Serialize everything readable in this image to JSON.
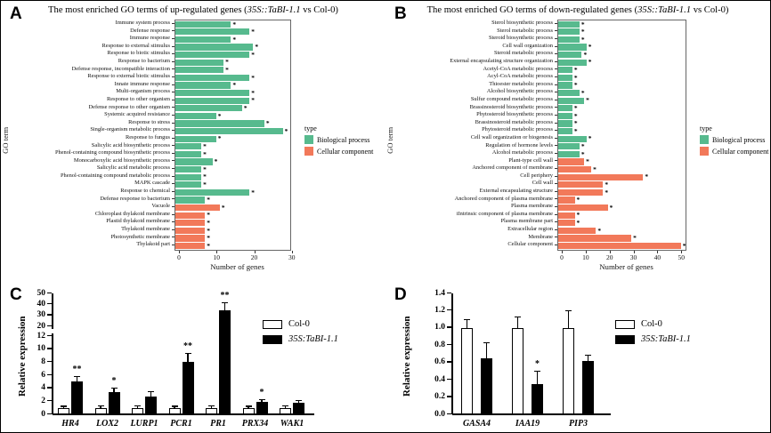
{
  "palette": {
    "biological_process": "#57ba8e",
    "cellular_component": "#f2795a"
  },
  "chart_data": [
    {
      "panel": "A",
      "type": "bar",
      "orientation": "horizontal",
      "title_prefix": "The most enriched GO terms of up-regulated genes (",
      "title_italic": "35S::TaBI-1.1",
      "title_suffix": " vs Col-0)",
      "ylabel": "GO term",
      "xlabel": "Number of genes",
      "xmax": 31,
      "xticks": [
        0,
        10,
        20,
        30
      ],
      "legend_title": "type",
      "legend": [
        {
          "label": "Biological process",
          "color": "#57ba8e"
        },
        {
          "label": "Cellular component",
          "color": "#f2795a"
        }
      ],
      "bars": [
        {
          "label": "Immune system process",
          "value": 15,
          "type": "bp",
          "sig": "*"
        },
        {
          "label": "Defense response",
          "value": 20,
          "type": "bp",
          "sig": "*"
        },
        {
          "label": "Immune response",
          "value": 15,
          "type": "bp",
          "sig": "*"
        },
        {
          "label": "Response to external stimulus",
          "value": 21,
          "type": "bp",
          "sig": "*"
        },
        {
          "label": "Response to biotic stimulus",
          "value": 20,
          "type": "bp",
          "sig": "*"
        },
        {
          "label": "Response to bacterium",
          "value": 13,
          "type": "bp",
          "sig": "*"
        },
        {
          "label": "Defense response, incompatible interaction",
          "value": 13,
          "type": "bp",
          "sig": "*"
        },
        {
          "label": "Response to external biotic stimulus",
          "value": 20,
          "type": "bp",
          "sig": "*"
        },
        {
          "label": "Innate immune response",
          "value": 15,
          "type": "bp",
          "sig": "*"
        },
        {
          "label": "Multi-organism process",
          "value": 20,
          "type": "bp",
          "sig": "*"
        },
        {
          "label": "Response to other organism",
          "value": 20,
          "type": "bp",
          "sig": "*"
        },
        {
          "label": "Defense response to other organism",
          "value": 18,
          "type": "bp",
          "sig": "*"
        },
        {
          "label": "Systemic acquired resistance",
          "value": 11,
          "type": "bp",
          "sig": "*"
        },
        {
          "label": "Response to stress",
          "value": 24,
          "type": "bp",
          "sig": "*"
        },
        {
          "label": "Single-organism metabolic process",
          "value": 29,
          "type": "bp",
          "sig": "*"
        },
        {
          "label": "Response to fungus",
          "value": 11,
          "type": "bp",
          "sig": "*"
        },
        {
          "label": "Salicylic acid biosynthetic process",
          "value": 7,
          "type": "bp",
          "sig": "*"
        },
        {
          "label": "Phenol-containing compound biosynthetic process",
          "value": 7,
          "type": "bp",
          "sig": "*"
        },
        {
          "label": "Monocarboxylic acid biosynthetic process",
          "value": 10,
          "type": "bp",
          "sig": "*"
        },
        {
          "label": "Salicylic acid metabolic process",
          "value": 7,
          "type": "bp",
          "sig": "*"
        },
        {
          "label": "Phenol-containing compound metabolic process",
          "value": 7,
          "type": "bp",
          "sig": "*"
        },
        {
          "label": "MAPK cascade",
          "value": 7,
          "type": "bp",
          "sig": "*"
        },
        {
          "label": "Response to chemical",
          "value": 20,
          "type": "bp",
          "sig": "*"
        },
        {
          "label": "Defense response to bacterium",
          "value": 8,
          "type": "bp",
          "sig": "*"
        },
        {
          "label": "Vacuole",
          "value": 12,
          "type": "cc",
          "sig": "*"
        },
        {
          "label": "Chloroplast thylakoid membrane",
          "value": 8,
          "type": "cc",
          "sig": "*"
        },
        {
          "label": "Plastid thylakoid membrane",
          "value": 8,
          "type": "cc",
          "sig": "*"
        },
        {
          "label": "Thylakoid membrane",
          "value": 8,
          "type": "cc",
          "sig": "*"
        },
        {
          "label": "Photosynthetic membrane",
          "value": 8,
          "type": "cc",
          "sig": "*"
        },
        {
          "label": "Thylakoid part",
          "value": 8,
          "type": "cc",
          "sig": "*"
        }
      ]
    },
    {
      "panel": "B",
      "type": "bar",
      "orientation": "horizontal",
      "title_prefix": "The most enriched GO terms of down-regulated genes (",
      "title_italic": "35S::TaBI-1.1",
      "title_suffix": " vs Col-0)",
      "ylabel": "GO term",
      "xlabel": "Number of genes",
      "xmax": 54,
      "xticks": [
        0,
        10,
        20,
        30,
        40,
        50
      ],
      "legend_title": "type",
      "legend": [
        {
          "label": "Biological process",
          "color": "#57ba8e"
        },
        {
          "label": "Cellular component",
          "color": "#f2795a"
        }
      ],
      "bars": [
        {
          "label": "Sterol biosynthetic process",
          "value": 9,
          "type": "bp",
          "sig": "*"
        },
        {
          "label": "Sterol metabolic process",
          "value": 9,
          "type": "bp",
          "sig": "*"
        },
        {
          "label": "Steroid biosynthetic process",
          "value": 9,
          "type": "bp",
          "sig": "*"
        },
        {
          "label": "Cell wall organization",
          "value": 12,
          "type": "bp",
          "sig": "*"
        },
        {
          "label": "Steroid metabolic process",
          "value": 10,
          "type": "bp",
          "sig": "*"
        },
        {
          "label": "External encapsulating structure organization",
          "value": 12,
          "type": "bp",
          "sig": "*"
        },
        {
          "label": "Acetyl-CoA metabolic process",
          "value": 6,
          "type": "bp",
          "sig": "*"
        },
        {
          "label": "Acyl-CoA metabolic process",
          "value": 6,
          "type": "bp",
          "sig": "*"
        },
        {
          "label": "Thioester metabolic process",
          "value": 6,
          "type": "bp",
          "sig": "*"
        },
        {
          "label": "Alcohol biosynthetic process",
          "value": 9,
          "type": "bp",
          "sig": "*"
        },
        {
          "label": "Sulfur compound metabolic process",
          "value": 11,
          "type": "bp",
          "sig": "*"
        },
        {
          "label": "Brassinosteroid biosynthetic process",
          "value": 6,
          "type": "bp",
          "sig": "*"
        },
        {
          "label": "Phytosteroid biosynthetic process",
          "value": 6,
          "type": "bp",
          "sig": "*"
        },
        {
          "label": "Brassinosteroid metabolic process",
          "value": 6,
          "type": "bp",
          "sig": "*"
        },
        {
          "label": "Phytosteroid metabolic process",
          "value": 6,
          "type": "bp",
          "sig": "*"
        },
        {
          "label": "Cell wall organization or biogenesis",
          "value": 12,
          "type": "bp",
          "sig": "*"
        },
        {
          "label": "Regulation of hormone levels",
          "value": 9,
          "type": "bp",
          "sig": "*"
        },
        {
          "label": "Alcohol metabolic process",
          "value": 9,
          "type": "bp",
          "sig": "*"
        },
        {
          "label": "Plant-type cell wall",
          "value": 11,
          "type": "cc",
          "sig": "*"
        },
        {
          "label": "Anchored component of membrane",
          "value": 14,
          "type": "cc",
          "sig": "*"
        },
        {
          "label": "Cell periphery",
          "value": 36,
          "type": "cc",
          "sig": "*"
        },
        {
          "label": "Cell wall",
          "value": 19,
          "type": "cc",
          "sig": "*"
        },
        {
          "label": "External encapsulating structure",
          "value": 19,
          "type": "cc",
          "sig": "*"
        },
        {
          "label": "Anchored component of plasma membrane",
          "value": 7,
          "type": "cc",
          "sig": "*"
        },
        {
          "label": "Plasma membrane",
          "value": 21,
          "type": "cc",
          "sig": "*"
        },
        {
          "label": "iIntrinsic component of plasma membrane",
          "value": 7,
          "type": "cc",
          "sig": "*"
        },
        {
          "label": "Plasma membrane part",
          "value": 7,
          "type": "cc",
          "sig": "*"
        },
        {
          "label": "Extracellular region",
          "value": 16,
          "type": "cc",
          "sig": "*"
        },
        {
          "label": "Membrane",
          "value": 31,
          "type": "cc",
          "sig": "*"
        },
        {
          "label": "Cellular component",
          "value": 52,
          "type": "cc",
          "sig": "*"
        }
      ]
    },
    {
      "panel": "C",
      "type": "grouped-bar",
      "ylabel": "Relative expression",
      "categories": [
        "HR4",
        "LOX2",
        "LURP1",
        "PCR1",
        "PR1",
        "PRX34",
        "WAK1"
      ],
      "axis_break": {
        "lower_range": [
          0,
          12
        ],
        "lower_ticks": [
          0,
          2,
          4,
          6,
          8,
          10,
          12
        ],
        "upper_range": [
          20,
          50
        ],
        "upper_ticks": [
          20,
          30,
          40,
          50
        ]
      },
      "series": [
        {
          "name": "Col-0",
          "fill": "#ffffff",
          "values": [
            1,
            1,
            1,
            1,
            1,
            1,
            1
          ],
          "errors": [
            0.15,
            0.2,
            0.25,
            0.15,
            0.2,
            0.15,
            0.2
          ],
          "sig": [
            "",
            "",
            "",
            "",
            "",
            "",
            ""
          ]
        },
        {
          "name": "35S:TaBI-1.1",
          "fill": "#000000",
          "values": [
            5.0,
            3.4,
            2.7,
            8.0,
            35,
            1.9,
            1.8
          ],
          "errors": [
            0.7,
            0.5,
            0.7,
            1.3,
            6,
            0.25,
            0.2
          ],
          "sig": [
            "**",
            "*",
            "",
            "**",
            "**",
            "*",
            ""
          ]
        }
      ],
      "legend": [
        {
          "label": "Col-0",
          "color": "#ffffff"
        },
        {
          "label": "35S:TaBI-1.1",
          "color": "#000000",
          "italic": true
        }
      ]
    },
    {
      "panel": "D",
      "type": "grouped-bar",
      "ylabel": "Relative expression",
      "categories": [
        "GASA4",
        "IAA19",
        "PIP3"
      ],
      "ylim": [
        0,
        1.4
      ],
      "yticks": [
        {
          "value": 0.0,
          "label": "0.0"
        },
        {
          "value": 0.2,
          "label": "0.2"
        },
        {
          "value": 0.4,
          "label": "0.4"
        },
        {
          "value": 0.6,
          "label": "0.6"
        },
        {
          "value": 0.8,
          "label": "0.8"
        },
        {
          "value": 1.0,
          "label": "1.0"
        },
        {
          "value": 1.2,
          "label": "1.2"
        },
        {
          "value": 1.4,
          "label": "1.4"
        }
      ],
      "series": [
        {
          "name": "Col-0",
          "fill": "#ffffff",
          "values": [
            1.0,
            1.0,
            1.0
          ],
          "errors": [
            0.09,
            0.12,
            0.19
          ],
          "sig": [
            "",
            "",
            ""
          ]
        },
        {
          "name": "35S:TaBI-1.1",
          "fill": "#000000",
          "values": [
            0.65,
            0.35,
            0.62
          ],
          "errors": [
            0.17,
            0.14,
            0.06
          ],
          "sig": [
            "",
            "*",
            ""
          ]
        }
      ],
      "legend": [
        {
          "label": "Col-0",
          "color": "#ffffff"
        },
        {
          "label": "35S:TaBI-1.1",
          "color": "#000000",
          "italic": true
        }
      ]
    }
  ]
}
